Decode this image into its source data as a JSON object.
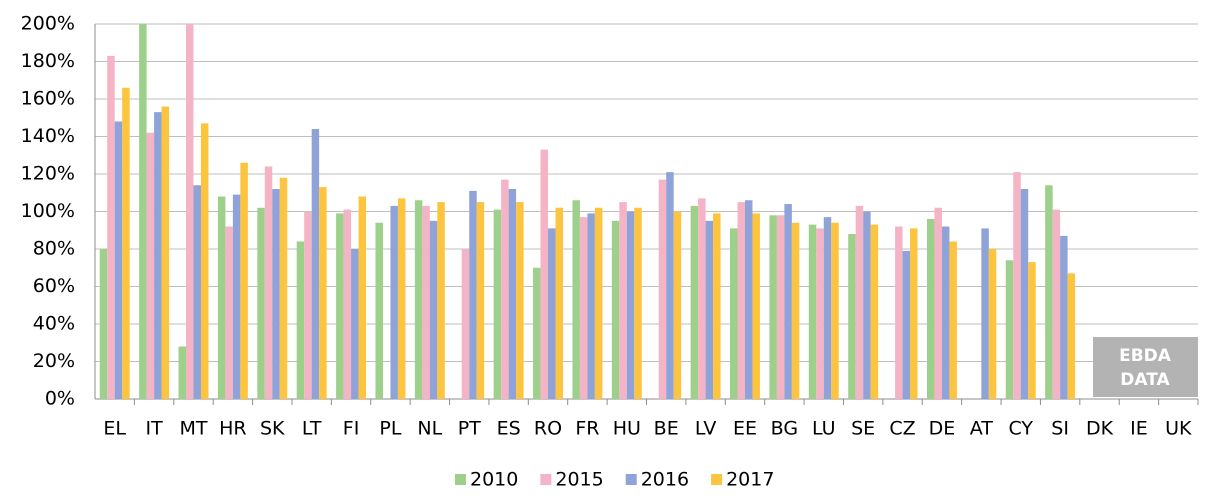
{
  "chart_data": {
    "type": "bar",
    "categories": [
      "EL",
      "IT",
      "MT",
      "HR",
      "SK",
      "LT",
      "FI",
      "PL",
      "NL",
      "PT",
      "ES",
      "RO",
      "FR",
      "HU",
      "BE",
      "LV",
      "EE",
      "BG",
      "LU",
      "SE",
      "CZ",
      "DE",
      "AT",
      "CY",
      "SI",
      "DK",
      "IE",
      "UK"
    ],
    "series": [
      {
        "name": "2010",
        "color": "#9dd08a",
        "values": [
          80,
          200,
          28,
          108,
          102,
          84,
          99,
          94,
          106,
          null,
          101,
          70,
          106,
          95,
          null,
          103,
          91,
          98,
          93,
          88,
          null,
          96,
          null,
          74,
          114,
          null,
          null,
          null
        ]
      },
      {
        "name": "2015",
        "color": "#f5b3c6",
        "values": [
          183,
          142,
          200,
          92,
          124,
          100,
          101,
          null,
          103,
          80,
          117,
          133,
          97,
          105,
          117,
          107,
          105,
          98,
          91,
          103,
          92,
          102,
          null,
          121,
          101,
          null,
          null,
          null
        ]
      },
      {
        "name": "2016",
        "color": "#8fa3d8",
        "values": [
          148,
          153,
          114,
          109,
          112,
          144,
          80,
          103,
          95,
          111,
          112,
          91,
          99,
          100,
          121,
          95,
          106,
          104,
          97,
          100,
          79,
          92,
          91,
          112,
          87,
          null,
          null,
          null
        ]
      },
      {
        "name": "2017",
        "color": "#fcc43f",
        "values": [
          166,
          156,
          147,
          126,
          118,
          113,
          108,
          107,
          105,
          105,
          105,
          102,
          102,
          102,
          100,
          99,
          99,
          94,
          94,
          93,
          91,
          84,
          80,
          73,
          67,
          null,
          null,
          null
        ]
      }
    ],
    "ylim": [
      0,
      200
    ],
    "yticks": [
      {
        "value": 0,
        "label": "0%"
      },
      {
        "value": 20,
        "label": "20%"
      },
      {
        "value": 40,
        "label": "40%"
      },
      {
        "value": 60,
        "label": "60%"
      },
      {
        "value": 80,
        "label": "80%"
      },
      {
        "value": 100,
        "label": "100%"
      },
      {
        "value": 120,
        "label": "120%"
      },
      {
        "value": 140,
        "label": "140%"
      },
      {
        "value": 160,
        "label": "160%"
      },
      {
        "value": 180,
        "label": "180%"
      },
      {
        "value": 200,
        "label": "200%"
      }
    ],
    "grid": true,
    "legend": "bottom",
    "annotation": {
      "lines": [
        "EBDA",
        "DATA"
      ],
      "color": "#b3b3b3"
    }
  }
}
